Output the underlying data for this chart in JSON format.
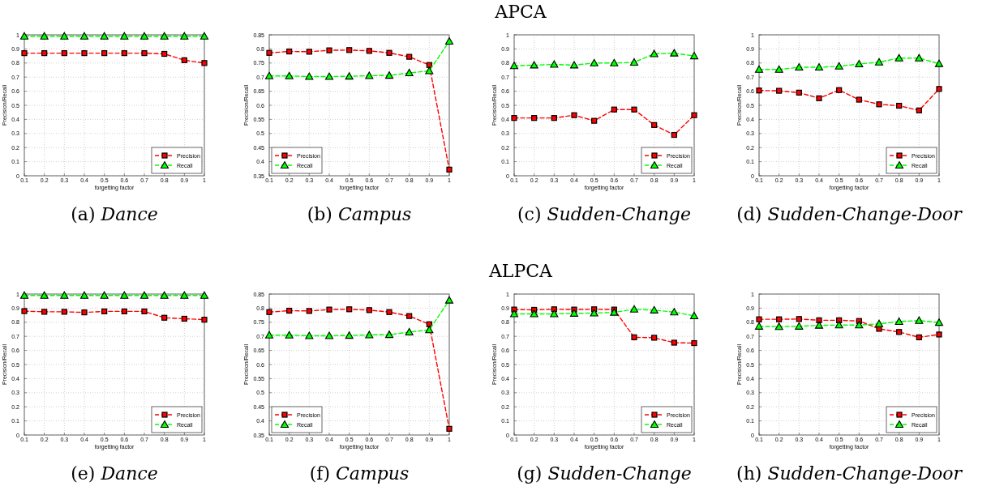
{
  "chart_data": [
    {
      "type": "line",
      "xlabel": "forgetting factor",
      "ylabel": "Precision/Recall",
      "annotations": [
        "(a) Dance"
      ],
      "x": [
        0.1,
        0.2,
        0.3,
        0.4,
        0.5,
        0.6,
        0.7,
        0.8,
        0.9,
        1
      ],
      "xlim": [
        0.1,
        1
      ],
      "xticks": [
        0.1,
        0.2,
        0.3,
        0.4,
        0.5,
        0.6,
        0.7,
        0.8,
        0.9,
        1
      ],
      "ylim": [
        0,
        1
      ],
      "yticks": [
        0,
        0.1,
        0.2,
        0.3,
        0.4,
        0.5,
        0.6,
        0.7,
        0.8,
        0.9,
        1
      ],
      "grid": true,
      "legend": "bottom right",
      "series": [
        {
          "name": "Precision",
          "color": "#ff0000",
          "marker": "square",
          "line_style": "dashed",
          "values": [
            0.87,
            0.87,
            0.87,
            0.87,
            0.87,
            0.87,
            0.87,
            0.865,
            0.82,
            0.8
          ]
        },
        {
          "name": "Recall",
          "color": "#00ff00",
          "marker": "triangle",
          "line_style": "dashed",
          "values": [
            0.99,
            0.99,
            0.99,
            0.99,
            0.99,
            0.99,
            0.99,
            0.99,
            0.99,
            0.99
          ]
        }
      ]
    },
    {
      "type": "line",
      "xlabel": "forgetting factor",
      "ylabel": "Precision/Recall",
      "annotations": [
        "(b) Campus"
      ],
      "x": [
        0.1,
        0.2,
        0.3,
        0.4,
        0.5,
        0.6,
        0.7,
        0.8,
        0.9,
        1
      ],
      "xlim": [
        0.1,
        1
      ],
      "xticks": [
        0.1,
        0.2,
        0.3,
        0.4,
        0.5,
        0.6,
        0.7,
        0.8,
        0.9,
        1
      ],
      "ylim": [
        0.35,
        0.85
      ],
      "yticks": [
        0.35,
        0.4,
        0.45,
        0.5,
        0.55,
        0.6,
        0.65,
        0.7,
        0.75,
        0.8,
        0.85
      ],
      "grid": true,
      "legend": "bottom left",
      "series": [
        {
          "name": "Precision",
          "color": "#ff0000",
          "marker": "square",
          "line_style": "dashed",
          "values": [
            0.786,
            0.791,
            0.79,
            0.795,
            0.796,
            0.793,
            0.786,
            0.772,
            0.743,
            0.372
          ]
        },
        {
          "name": "Recall",
          "color": "#00ff00",
          "marker": "triangle",
          "line_style": "dashed",
          "values": [
            0.704,
            0.704,
            0.702,
            0.702,
            0.703,
            0.705,
            0.706,
            0.715,
            0.722,
            0.827
          ]
        }
      ]
    },
    {
      "type": "line",
      "title": "APCA",
      "xlabel": "forgetting factor",
      "ylabel": "Precision/Recall",
      "annotations": [
        "(c) Sudden-Change"
      ],
      "x": [
        0.1,
        0.2,
        0.3,
        0.4,
        0.5,
        0.6,
        0.7,
        0.8,
        0.9,
        1
      ],
      "xlim": [
        0.1,
        1
      ],
      "xticks": [
        0.1,
        0.2,
        0.3,
        0.4,
        0.5,
        0.6,
        0.7,
        0.8,
        0.9,
        1
      ],
      "ylim": [
        0,
        1
      ],
      "yticks": [
        0,
        0.1,
        0.2,
        0.3,
        0.4,
        0.5,
        0.6,
        0.7,
        0.8,
        0.9,
        1
      ],
      "grid": true,
      "legend": "bottom right",
      "series": [
        {
          "name": "Precision",
          "color": "#ff0000",
          "marker": "square",
          "line_style": "dashed",
          "values": [
            0.41,
            0.41,
            0.41,
            0.43,
            0.39,
            0.47,
            0.47,
            0.36,
            0.29,
            0.43
          ]
        },
        {
          "name": "Recall",
          "color": "#00ff00",
          "marker": "triangle",
          "line_style": "dashed",
          "values": [
            0.78,
            0.785,
            0.79,
            0.785,
            0.8,
            0.8,
            0.805,
            0.865,
            0.87,
            0.85
          ]
        }
      ]
    },
    {
      "type": "line",
      "xlabel": "forgetting factor",
      "ylabel": "Precision/Recall",
      "annotations": [
        "(d) Sudden-Change-Door"
      ],
      "x": [
        0.1,
        0.2,
        0.3,
        0.4,
        0.5,
        0.6,
        0.7,
        0.8,
        0.9,
        1
      ],
      "xlim": [
        0.1,
        1
      ],
      "xticks": [
        0.1,
        0.2,
        0.3,
        0.4,
        0.5,
        0.6,
        0.7,
        0.8,
        0.9,
        1
      ],
      "ylim": [
        0,
        1
      ],
      "yticks": [
        0,
        0.1,
        0.2,
        0.3,
        0.4,
        0.5,
        0.6,
        0.7,
        0.8,
        0.9,
        1
      ],
      "grid": true,
      "legend": "bottom right",
      "series": [
        {
          "name": "Precision",
          "color": "#ff0000",
          "marker": "square",
          "line_style": "dashed",
          "values": [
            0.605,
            0.603,
            0.59,
            0.55,
            0.608,
            0.54,
            0.507,
            0.497,
            0.464,
            0.616
          ]
        },
        {
          "name": "Recall",
          "color": "#00ff00",
          "marker": "triangle",
          "line_style": "dashed",
          "values": [
            0.754,
            0.754,
            0.77,
            0.77,
            0.777,
            0.793,
            0.806,
            0.835,
            0.835,
            0.795
          ]
        }
      ]
    },
    {
      "type": "line",
      "xlabel": "forgetting factor",
      "ylabel": "Precision/Recall",
      "annotations": [
        "(e) Dance"
      ],
      "x": [
        0.1,
        0.2,
        0.3,
        0.4,
        0.5,
        0.6,
        0.7,
        0.8,
        0.9,
        1
      ],
      "xlim": [
        0.1,
        1
      ],
      "xticks": [
        0.1,
        0.2,
        0.3,
        0.4,
        0.5,
        0.6,
        0.7,
        0.8,
        0.9,
        1
      ],
      "ylim": [
        0,
        1
      ],
      "yticks": [
        0,
        0.1,
        0.2,
        0.3,
        0.4,
        0.5,
        0.6,
        0.7,
        0.8,
        0.9,
        1
      ],
      "grid": true,
      "legend": "bottom right",
      "series": [
        {
          "name": "Precision",
          "color": "#ff0000",
          "marker": "square",
          "line_style": "dashed",
          "values": [
            0.879,
            0.874,
            0.874,
            0.87,
            0.877,
            0.877,
            0.877,
            0.832,
            0.825,
            0.818
          ]
        },
        {
          "name": "Recall",
          "color": "#00ff00",
          "marker": "triangle",
          "line_style": "dashed",
          "values": [
            0.99,
            0.99,
            0.99,
            0.99,
            0.99,
            0.99,
            0.99,
            0.99,
            0.99,
            0.99
          ]
        }
      ]
    },
    {
      "type": "line",
      "xlabel": "forgetting factor",
      "ylabel": "Precision/Recall",
      "annotations": [
        "(f) Campus"
      ],
      "x": [
        0.1,
        0.2,
        0.3,
        0.4,
        0.5,
        0.6,
        0.7,
        0.8,
        0.9,
        1
      ],
      "xlim": [
        0.1,
        1
      ],
      "xticks": [
        0.1,
        0.2,
        0.3,
        0.4,
        0.5,
        0.6,
        0.7,
        0.8,
        0.9,
        1
      ],
      "ylim": [
        0.35,
        0.85
      ],
      "yticks": [
        0.35,
        0.4,
        0.45,
        0.5,
        0.55,
        0.6,
        0.65,
        0.7,
        0.75,
        0.8,
        0.85
      ],
      "grid": true,
      "legend": "bottom left",
      "series": [
        {
          "name": "Precision",
          "color": "#ff0000",
          "marker": "square",
          "line_style": "dashed",
          "values": [
            0.786,
            0.791,
            0.79,
            0.795,
            0.796,
            0.793,
            0.786,
            0.772,
            0.743,
            0.372
          ]
        },
        {
          "name": "Recall",
          "color": "#00ff00",
          "marker": "triangle",
          "line_style": "dashed",
          "values": [
            0.704,
            0.704,
            0.702,
            0.702,
            0.703,
            0.705,
            0.706,
            0.715,
            0.723,
            0.828
          ]
        }
      ]
    },
    {
      "type": "line",
      "title": "ALPCA",
      "xlabel": "forgetting factor",
      "ylabel": "Precision/Recall",
      "annotations": [
        "(g) Sudden-Change"
      ],
      "x": [
        0.1,
        0.2,
        0.3,
        0.4,
        0.5,
        0.6,
        0.7,
        0.8,
        0.9,
        1
      ],
      "xlim": [
        0.1,
        1
      ],
      "xticks": [
        0.1,
        0.2,
        0.3,
        0.4,
        0.5,
        0.6,
        0.7,
        0.8,
        0.9,
        1
      ],
      "ylim": [
        0,
        1
      ],
      "yticks": [
        0,
        0.1,
        0.2,
        0.3,
        0.4,
        0.5,
        0.6,
        0.7,
        0.8,
        0.9,
        1
      ],
      "grid": true,
      "legend": "bottom right",
      "series": [
        {
          "name": "Precision",
          "color": "#ff0000",
          "marker": "square",
          "line_style": "dashed",
          "values": [
            0.89,
            0.888,
            0.892,
            0.89,
            0.892,
            0.89,
            0.693,
            0.69,
            0.655,
            0.652
          ]
        },
        {
          "name": "Recall",
          "color": "#00ff00",
          "marker": "triangle",
          "line_style": "dashed",
          "values": [
            0.859,
            0.859,
            0.859,
            0.863,
            0.865,
            0.87,
            0.892,
            0.886,
            0.872,
            0.845
          ]
        }
      ]
    },
    {
      "type": "line",
      "xlabel": "forgetting factor",
      "ylabel": "Precision/Recall",
      "annotations": [
        "(h) Sudden-Change-Door"
      ],
      "x": [
        0.1,
        0.2,
        0.3,
        0.4,
        0.5,
        0.6,
        0.7,
        0.8,
        0.9,
        1
      ],
      "xlim": [
        0.1,
        1
      ],
      "xticks": [
        0.1,
        0.2,
        0.3,
        0.4,
        0.5,
        0.6,
        0.7,
        0.8,
        0.9,
        1
      ],
      "ylim": [
        0,
        1
      ],
      "yticks": [
        0,
        0.1,
        0.2,
        0.3,
        0.4,
        0.5,
        0.6,
        0.7,
        0.8,
        0.9,
        1
      ],
      "grid": true,
      "legend": "bottom right",
      "series": [
        {
          "name": "Precision",
          "color": "#ff0000",
          "marker": "square",
          "line_style": "dashed",
          "values": [
            0.821,
            0.821,
            0.823,
            0.814,
            0.814,
            0.809,
            0.753,
            0.731,
            0.693,
            0.713
          ]
        },
        {
          "name": "Recall",
          "color": "#00ff00",
          "marker": "triangle",
          "line_style": "dashed",
          "values": [
            0.771,
            0.769,
            0.771,
            0.778,
            0.78,
            0.78,
            0.789,
            0.805,
            0.812,
            0.798
          ]
        }
      ]
    }
  ]
}
